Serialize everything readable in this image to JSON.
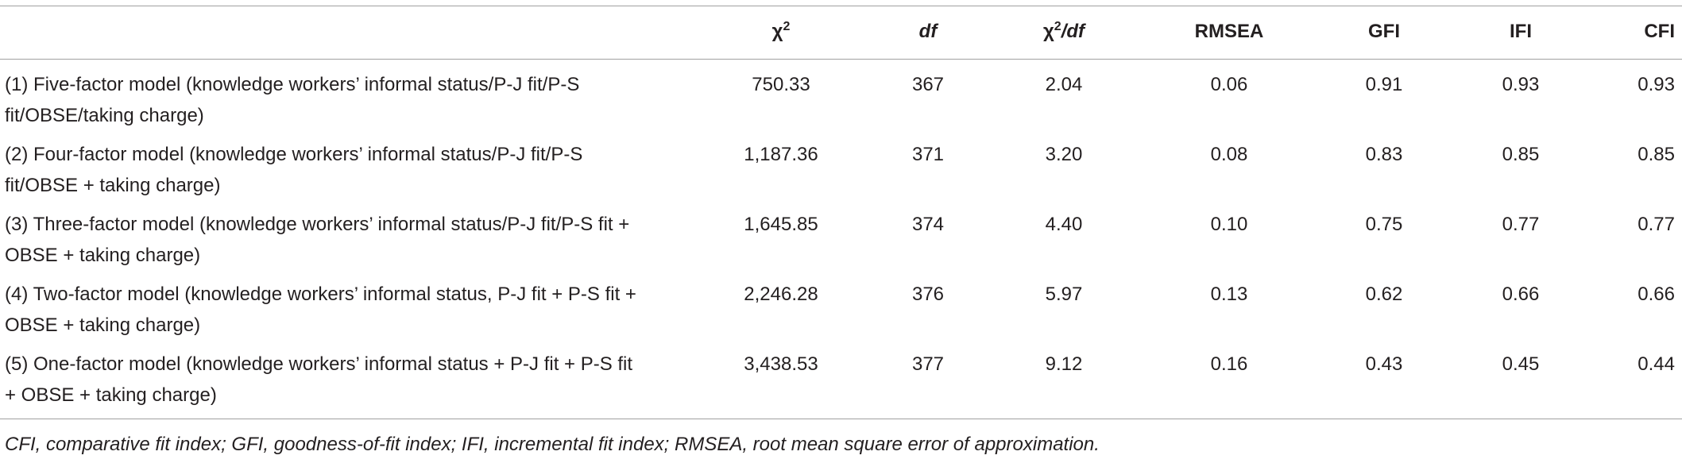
{
  "table": {
    "header": [
      [
        {
          "t": "χ"
        },
        {
          "t": "2",
          "sup": true
        }
      ],
      [
        {
          "t": "df",
          "italic": true
        }
      ],
      [
        {
          "t": "χ"
        },
        {
          "t": "2",
          "sup": true
        },
        {
          "t": "/df",
          "italic": true
        }
      ],
      [
        {
          "t": "RMSEA"
        }
      ],
      [
        {
          "t": "GFI"
        }
      ],
      [
        {
          "t": "IFI"
        }
      ],
      [
        {
          "t": "CFI"
        }
      ]
    ],
    "rows": [
      [
        "(1) Five-factor model (knowledge workers’ informal status/P-J fit/P-S fit/OBSE/taking charge)",
        "750.33",
        "367",
        "2.04",
        "0.06",
        "0.91",
        "0.93",
        "0.93"
      ],
      [
        "(2) Four-factor model (knowledge workers’ informal status/P-J fit/P-S fit/OBSE + taking charge)",
        "1,187.36",
        "371",
        "3.20",
        "0.08",
        "0.83",
        "0.85",
        "0.85"
      ],
      [
        "(3) Three-factor model (knowledge workers’ informal status/P-J fit/P-S fit + OBSE + taking charge)",
        "1,645.85",
        "374",
        "4.40",
        "0.10",
        "0.75",
        "0.77",
        "0.77"
      ],
      [
        "(4) Two-factor model (knowledge workers’ informal status, P-J fit + P-S fit + OBSE + taking charge)",
        "2,246.28",
        "376",
        "5.97",
        "0.13",
        "0.62",
        "0.66",
        "0.66"
      ],
      [
        "(5) One-factor model (knowledge workers’ informal status + P-J fit + P-S fit + OBSE + taking charge)",
        "3,438.53",
        "377",
        "9.12",
        "0.16",
        "0.43",
        "0.45",
        "0.44"
      ]
    ],
    "footnote": "CFI, comparative fit index; GFI, goodness-of-fit index; IFI, incremental fit index; RMSEA, root mean square error of approximation."
  }
}
